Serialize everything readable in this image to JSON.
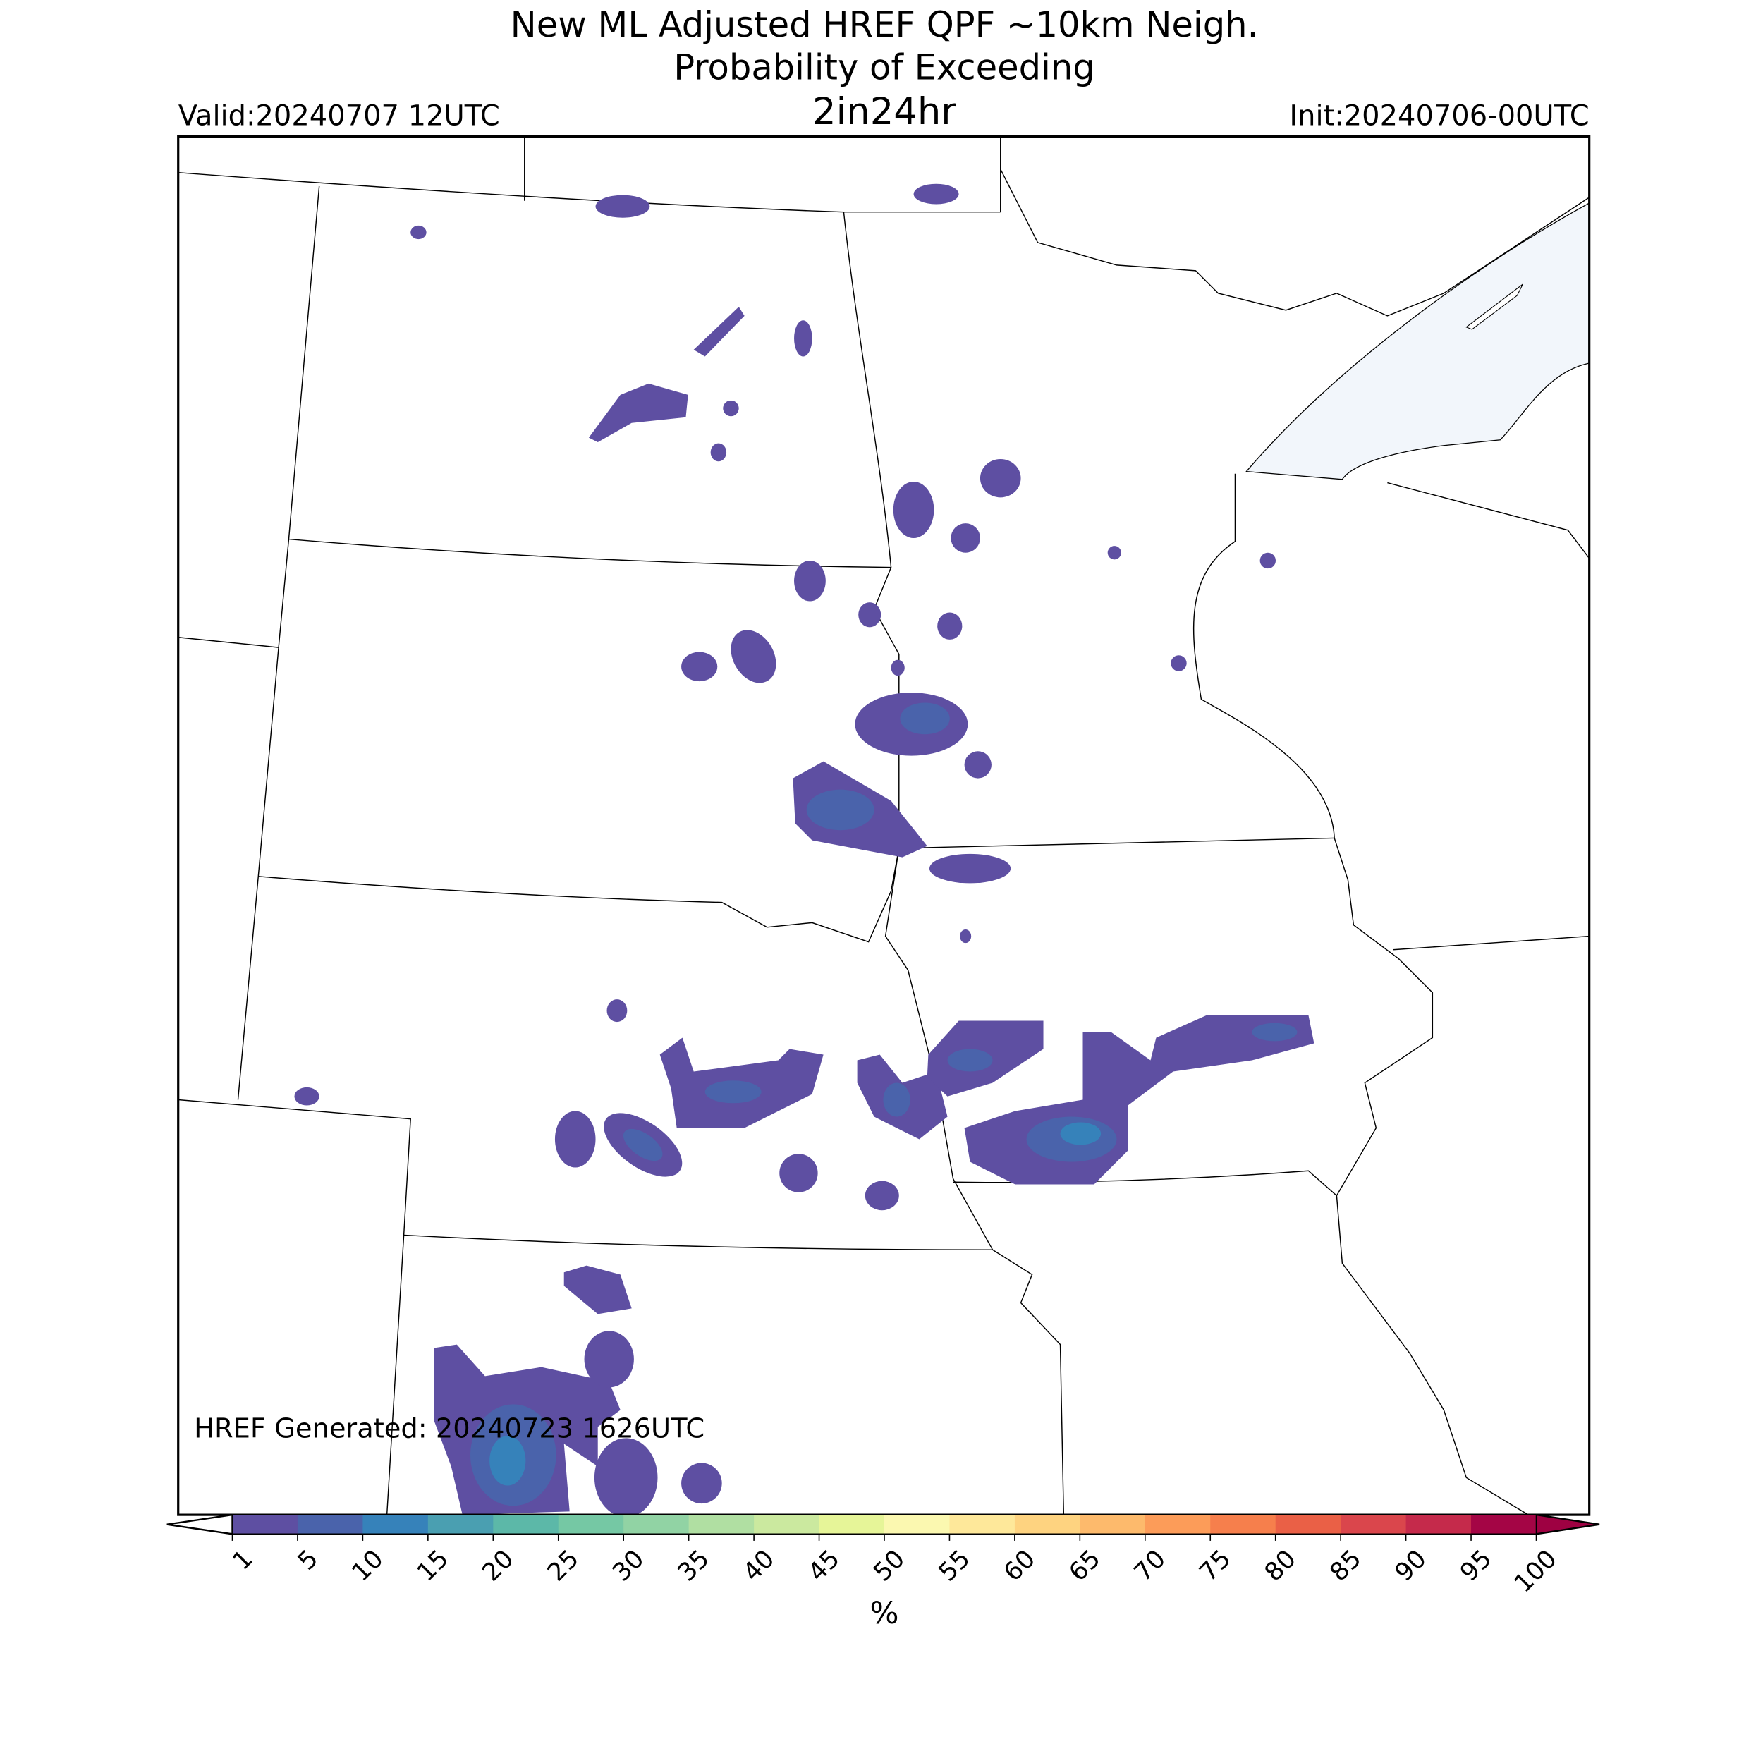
{
  "title": {
    "line1": "New ML Adjusted HREF QPF ~10km Neigh.",
    "line2": "Probability of Exceeding",
    "threshold": "2in24hr",
    "valid": "Valid:20240707 12UTC",
    "init": "Init:20240706-00UTC"
  },
  "annotation": "HREF Generated: 20240723 1626UTC",
  "colorbar": {
    "levels": [
      1,
      5,
      10,
      15,
      20,
      25,
      30,
      35,
      40,
      45,
      50,
      55,
      60,
      65,
      70,
      75,
      80,
      85,
      90,
      95,
      100
    ],
    "colors": [
      "#5e4fa2",
      "#4a63ab",
      "#3682ba",
      "#4a9fb1",
      "#5cb8a8",
      "#75c8a4",
      "#91d3a4",
      "#b0dfa2",
      "#cbe99f",
      "#e6f598",
      "#fbf8b0",
      "#fee89a",
      "#fed380",
      "#fdba6c",
      "#fc9c59",
      "#f67f4c",
      "#ea6046",
      "#da464c",
      "#c52a4b",
      "#a40545"
    ],
    "over_color": "#9e0142",
    "label": "%"
  }
}
